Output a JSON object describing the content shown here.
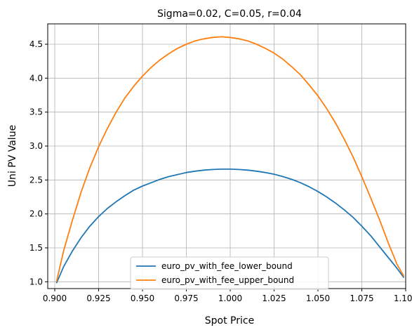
{
  "chart_data": {
    "type": "line",
    "title": "Sigma=0.02, C=0.05, r=0.04",
    "xlabel": "Spot Price",
    "ylabel": "Uni PV Value",
    "xlim": [
      0.896,
      1.1
    ],
    "ylim": [
      0.9,
      4.8
    ],
    "xticks": [
      "0.900",
      "0.925",
      "0.950",
      "0.975",
      "1.000",
      "1.025",
      "1.050",
      "1.075",
      "1.100"
    ],
    "xtick_values": [
      0.9,
      0.925,
      0.95,
      0.975,
      1.0,
      1.025,
      1.05,
      1.075,
      1.1
    ],
    "yticks": [
      "1.0",
      "1.5",
      "2.0",
      "2.5",
      "3.0",
      "3.5",
      "4.0",
      "4.5"
    ],
    "ytick_values": [
      1.0,
      1.5,
      2.0,
      2.5,
      3.0,
      3.5,
      4.0,
      4.5
    ],
    "grid": true,
    "legend_position": "lower-center",
    "series": [
      {
        "name": "euro_pv_with_fee_lower_bound",
        "color": "#1f77b4",
        "x": [
          0.901,
          0.905,
          0.91,
          0.915,
          0.92,
          0.925,
          0.93,
          0.935,
          0.94,
          0.945,
          0.95,
          0.955,
          0.96,
          0.965,
          0.97,
          0.975,
          0.98,
          0.985,
          0.99,
          0.995,
          1.0,
          1.005,
          1.01,
          1.015,
          1.02,
          1.025,
          1.03,
          1.035,
          1.04,
          1.045,
          1.05,
          1.055,
          1.06,
          1.065,
          1.07,
          1.075,
          1.08,
          1.085,
          1.09,
          1.095,
          1.099
        ],
        "y": [
          0.98,
          1.22,
          1.45,
          1.65,
          1.82,
          1.96,
          2.08,
          2.18,
          2.27,
          2.35,
          2.41,
          2.46,
          2.51,
          2.55,
          2.58,
          2.61,
          2.63,
          2.645,
          2.655,
          2.66,
          2.66,
          2.655,
          2.645,
          2.63,
          2.61,
          2.585,
          2.55,
          2.51,
          2.46,
          2.4,
          2.33,
          2.25,
          2.16,
          2.06,
          1.95,
          1.82,
          1.68,
          1.52,
          1.36,
          1.2,
          1.06
        ]
      },
      {
        "name": "euro_pv_with_fee_upper_bound",
        "color": "#ff7f0e",
        "x": [
          0.901,
          0.905,
          0.91,
          0.915,
          0.92,
          0.925,
          0.93,
          0.935,
          0.94,
          0.945,
          0.95,
          0.955,
          0.96,
          0.965,
          0.97,
          0.975,
          0.98,
          0.985,
          0.99,
          0.995,
          1.0,
          1.005,
          1.01,
          1.015,
          1.02,
          1.025,
          1.03,
          1.035,
          1.04,
          1.045,
          1.05,
          1.055,
          1.06,
          1.065,
          1.07,
          1.075,
          1.08,
          1.085,
          1.09,
          1.095,
          1.099
        ],
        "y": [
          1.0,
          1.45,
          1.9,
          2.32,
          2.68,
          2.99,
          3.26,
          3.5,
          3.71,
          3.88,
          4.03,
          4.16,
          4.27,
          4.36,
          4.44,
          4.5,
          4.55,
          4.58,
          4.6,
          4.61,
          4.6,
          4.58,
          4.55,
          4.5,
          4.44,
          4.37,
          4.28,
          4.17,
          4.05,
          3.9,
          3.74,
          3.55,
          3.34,
          3.1,
          2.84,
          2.55,
          2.24,
          1.92,
          1.58,
          1.26,
          1.08
        ]
      }
    ]
  }
}
